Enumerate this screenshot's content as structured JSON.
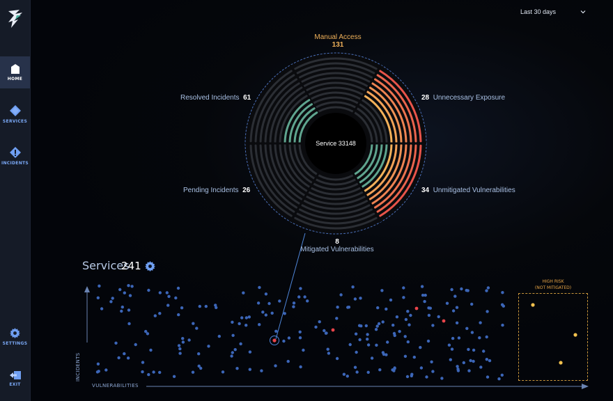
{
  "sidebar": {
    "items": [
      {
        "label": "HOME",
        "icon": "home-icon",
        "active": true
      },
      {
        "label": "SERVICES",
        "icon": "services-diamond-icon"
      },
      {
        "label": "INCIDENTS",
        "icon": "incident-alert-icon"
      },
      {
        "label": "SETTINGS",
        "icon": "gear-icon"
      },
      {
        "label": "EXIT",
        "icon": "exit-icon"
      }
    ]
  },
  "date_filter": {
    "value": "Last 30 days"
  },
  "service_wheel": {
    "center_label": "Service 33148",
    "segments": [
      {
        "name": "Manual Access",
        "value": "131"
      },
      {
        "name": "Unnecessary Exposure",
        "value": "28"
      },
      {
        "name": "Unmitigated Vulnerabilities",
        "value": "34"
      },
      {
        "name": "Mitigated Vulnerabilities",
        "value": "8"
      },
      {
        "name": "Pending Incidents",
        "value": "26"
      },
      {
        "name": "Resolved Incidents",
        "value": "61"
      }
    ],
    "colors": {
      "good": "#5fa58f",
      "warn": "#f3b15a",
      "bad": "#e8544a",
      "track": "#2b2e34"
    }
  },
  "services_panel": {
    "title": "Services",
    "count": "241",
    "x_axis_label": "VULNERABILITIES",
    "y_axis_label": "INCIDENTS",
    "high_risk_label_1": "HIGH RISK",
    "high_risk_label_2": "(NOT MITIGATED)",
    "colors": {
      "dot": "#3c66b8",
      "alert": "#e8444a",
      "risk": "#f2c14e"
    }
  }
}
